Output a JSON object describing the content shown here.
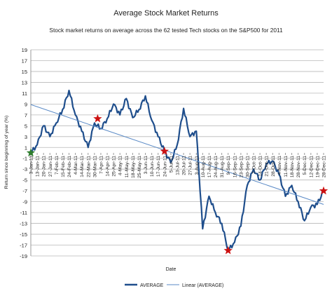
{
  "chart_data": {
    "type": "line",
    "title": "Average Stock Market Returns",
    "subtitle": "Stock market returns on average across the 62 tested Tech stocks on the S&P500 for 2011",
    "xlabel": "Date",
    "ylabel": "Return since beginning of year (%)",
    "ylim": [
      -19,
      19
    ],
    "yticks": [
      "19",
      "17",
      "15",
      "13",
      "11",
      "9",
      "7",
      "5",
      "3",
      "1",
      "-1",
      "-3",
      "-5",
      "-7",
      "-9",
      "-11",
      "-13",
      "-15",
      "-17",
      "-19"
    ],
    "xticks": [
      "3-Jan-11",
      "13-Jan-11",
      "20-Jan-11",
      "27-Jan-11",
      "7-Feb-11",
      "15-Feb-11",
      "24-Feb-11",
      "4-Mar-11",
      "14-Mar-11",
      "22-Mar-11",
      "30-Mar-11",
      "7-Apr-11",
      "14-Apr-11",
      "25-Apr-11",
      "4-May-11",
      "11-May-11",
      "18-May-11",
      "25-May-11",
      "3-Jun-11",
      "10-Jun-11",
      "17-Jun-11",
      "24-Jun-11",
      "5-Jul-11",
      "13-Jul-11",
      "20-Jul-11",
      "27-Jul-11",
      "3-Aug-11",
      "10-Aug-11",
      "17-Aug-11",
      "24-Aug-11",
      "31-Aug-11",
      "9-Sep-11",
      "16-Sep-11",
      "23-Sep-11",
      "30-Sep-11",
      "7-Oct-11",
      "14-Oct-11",
      "21-Oct-11",
      "28-Oct-11",
      "4-Nov-11",
      "11-Nov-11",
      "18-Nov-11",
      "28-Nov-11",
      "5-Dec-11",
      "12-Dec-11",
      "19-Dec-11",
      "28-Dec-11"
    ],
    "grid": true,
    "legend_position": "bottom",
    "series": [
      {
        "name": "AVERAGE",
        "color": "#1f4e8c",
        "x": [
          0,
          1,
          2,
          3,
          4,
          5,
          6,
          7,
          8,
          9,
          10,
          11,
          12,
          13,
          14,
          15,
          16,
          17,
          18,
          19,
          20,
          21,
          22,
          23,
          24,
          25,
          26,
          27,
          28,
          29,
          30,
          31,
          32,
          33,
          34,
          35,
          36,
          37,
          38,
          39,
          40,
          41,
          42,
          43,
          44,
          45,
          46
        ],
        "values": [
          0,
          1.5,
          5,
          3,
          5.5,
          8,
          11.5,
          7,
          4,
          1,
          5.5,
          4.5,
          6.3,
          9,
          7,
          10,
          6.5,
          8,
          10.5,
          6,
          3,
          0.3,
          -1.8,
          1.5,
          8.2,
          3,
          4,
          -14,
          -8,
          -11,
          -13,
          -18,
          -16.5,
          -13.5,
          -6,
          -3,
          -5,
          -2,
          -1.5,
          -4,
          -8,
          -6,
          -9,
          -12.5,
          -10,
          -9.5,
          -7
        ]
      },
      {
        "name": "Linear (AVERAGE)",
        "color": "#5a8ac6",
        "x": [
          0,
          46
        ],
        "values": [
          8.9,
          -9.5
        ]
      }
    ],
    "markers": [
      {
        "x": 0,
        "y": 0,
        "color": "#2e7d2e",
        "shape": "star"
      },
      {
        "x": 10.5,
        "y": 6.3,
        "color": "#cc1111",
        "shape": "star"
      },
      {
        "x": 21,
        "y": 0.3,
        "color": "#cc1111",
        "shape": "star"
      },
      {
        "x": 31,
        "y": -18,
        "color": "#cc1111",
        "shape": "star"
      },
      {
        "x": 46,
        "y": -7,
        "color": "#cc1111",
        "shape": "star"
      }
    ]
  }
}
